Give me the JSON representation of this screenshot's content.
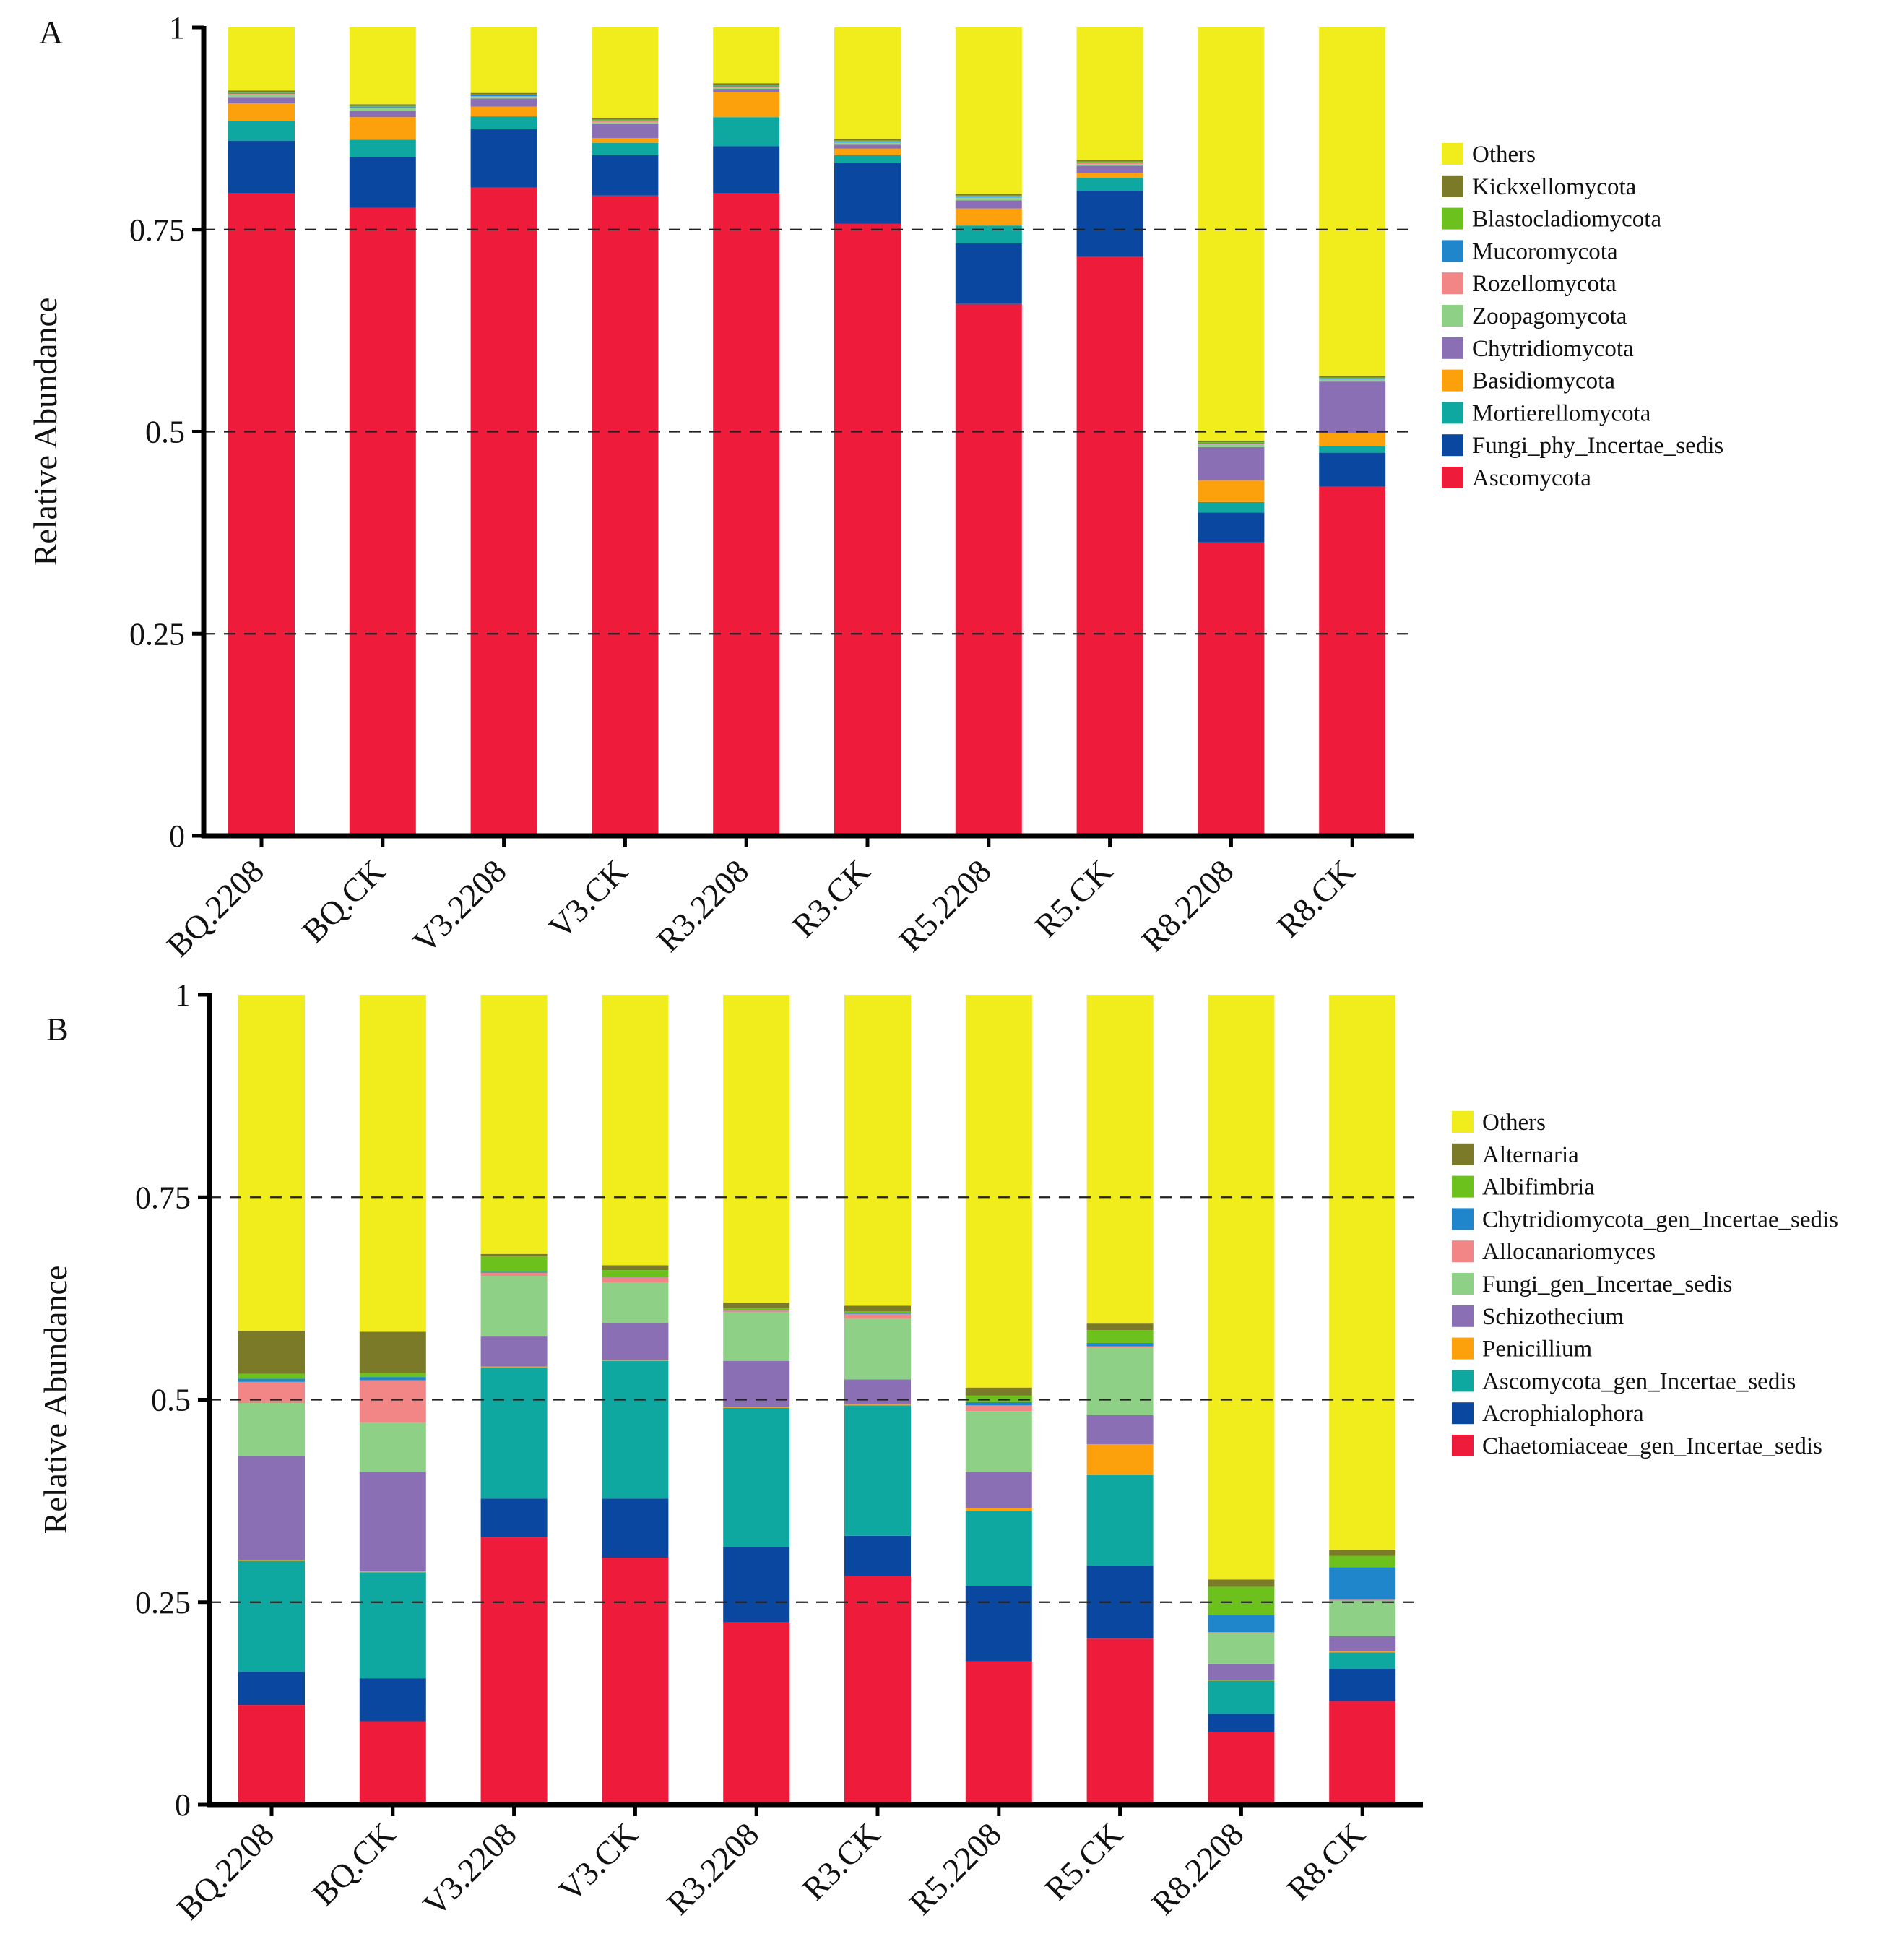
{
  "chart_data": [
    {
      "type": "bar",
      "stacked": true,
      "panel_label": "A",
      "ylabel": "Relative Abundance",
      "ylim": [
        0,
        1
      ],
      "yticks": [
        "0",
        "0.25",
        "0.5",
        "0.75",
        "1"
      ],
      "grid": "dashed horizontal at 0.25, 0.5, 0.75",
      "legend_position": "right",
      "categories": [
        "BQ.2208",
        "BQ.CK",
        "V3.2208",
        "V3.CK",
        "R3.2208",
        "R3.CK",
        "R5.2208",
        "R5.CK",
        "R8.2208",
        "R8.CK"
      ],
      "series": [
        {
          "name": "Ascomycota",
          "color": "#EE1B3B",
          "values": [
            0.795,
            0.777,
            0.802,
            0.792,
            0.795,
            0.757,
            0.658,
            0.716,
            0.363,
            0.432
          ]
        },
        {
          "name": "Fungi_phy_Incertae_sedis",
          "color": "#0A47A0",
          "values": [
            0.065,
            0.063,
            0.072,
            0.05,
            0.058,
            0.075,
            0.075,
            0.082,
            0.037,
            0.042
          ]
        },
        {
          "name": "Mortierellomycota",
          "color": "#0FA8A0",
          "values": [
            0.024,
            0.021,
            0.016,
            0.015,
            0.036,
            0.01,
            0.022,
            0.016,
            0.013,
            0.008
          ]
        },
        {
          "name": "Basidiomycota",
          "color": "#FCA10C",
          "values": [
            0.022,
            0.028,
            0.012,
            0.006,
            0.031,
            0.008,
            0.021,
            0.006,
            0.027,
            0.016
          ]
        },
        {
          "name": "Chytridiomycota",
          "color": "#8B6FB5",
          "values": [
            0.008,
            0.008,
            0.01,
            0.018,
            0.004,
            0.005,
            0.01,
            0.009,
            0.041,
            0.064
          ]
        },
        {
          "name": "Zoopagomycota",
          "color": "#8ED186",
          "values": [
            0.003,
            0.003,
            0.002,
            0.002,
            0.002,
            0.002,
            0.003,
            0.002,
            0.003,
            0.002
          ]
        },
        {
          "name": "Rozellomycota",
          "color": "#F28585",
          "values": [
            0.001,
            0.001,
            0.001,
            0.001,
            0.001,
            0.001,
            0.001,
            0.001,
            0.001,
            0.001
          ]
        },
        {
          "name": "Mucoromycota",
          "color": "#1F86CB",
          "values": [
            0.001,
            0.001,
            0.001,
            0.001,
            0.001,
            0.001,
            0.001,
            0.001,
            0.001,
            0.001
          ]
        },
        {
          "name": "Blastocladiomycota",
          "color": "#6CC11C",
          "values": [
            0.001,
            0.001,
            0.001,
            0.001,
            0.001,
            0.001,
            0.001,
            0.001,
            0.001,
            0.001
          ]
        },
        {
          "name": "Kickxellomycota",
          "color": "#7A7A28",
          "values": [
            0.002,
            0.002,
            0.002,
            0.002,
            0.002,
            0.002,
            0.002,
            0.002,
            0.002,
            0.002
          ]
        },
        {
          "name": "Others",
          "color": "#F1EC1C",
          "values": [
            0.078,
            0.095,
            0.081,
            0.112,
            0.069,
            0.138,
            0.206,
            0.164,
            0.511,
            0.431
          ]
        }
      ]
    },
    {
      "type": "bar",
      "stacked": true,
      "panel_label": "B",
      "ylabel": "Relative Abundance",
      "ylim": [
        0,
        1
      ],
      "yticks": [
        "0",
        "0.25",
        "0.5",
        "0.75",
        "1"
      ],
      "grid": "dashed horizontal at 0.25, 0.5, 0.75",
      "legend_position": "right",
      "categories": [
        "BQ.2208",
        "BQ.CK",
        "V3.2208",
        "V3.CK",
        "R3.2208",
        "R3.CK",
        "R5.2208",
        "R5.CK",
        "R8.2208",
        "R8.CK"
      ],
      "series": [
        {
          "name": "Chaetomiaceae_gen_Incertae_sedis",
          "color": "#EE1B3B",
          "values": [
            0.123,
            0.103,
            0.33,
            0.305,
            0.225,
            0.282,
            0.177,
            0.205,
            0.09,
            0.128
          ]
        },
        {
          "name": "Acrophialophora",
          "color": "#0A47A0",
          "values": [
            0.041,
            0.053,
            0.048,
            0.073,
            0.093,
            0.05,
            0.093,
            0.09,
            0.022,
            0.04
          ]
        },
        {
          "name": "Ascomycota_gen_Incertae_sedis",
          "color": "#0FA8A0",
          "values": [
            0.137,
            0.131,
            0.162,
            0.17,
            0.172,
            0.161,
            0.093,
            0.112,
            0.041,
            0.02
          ]
        },
        {
          "name": "Penicillium",
          "color": "#FCA10C",
          "values": [
            0.001,
            0.001,
            0.001,
            0.001,
            0.001,
            0.001,
            0.003,
            0.038,
            0.001,
            0.001
          ]
        },
        {
          "name": "Schizothecium",
          "color": "#8B6FB5",
          "values": [
            0.128,
            0.123,
            0.037,
            0.046,
            0.057,
            0.031,
            0.045,
            0.036,
            0.02,
            0.019
          ]
        },
        {
          "name": "Fungi_gen_Incertae_sedis",
          "color": "#8ED186",
          "values": [
            0.066,
            0.061,
            0.075,
            0.05,
            0.06,
            0.075,
            0.075,
            0.083,
            0.038,
            0.044
          ]
        },
        {
          "name": "Allocanariomyces",
          "color": "#F28585",
          "values": [
            0.026,
            0.052,
            0.004,
            0.006,
            0.002,
            0.006,
            0.007,
            0.002,
            0.001,
            0.001
          ]
        },
        {
          "name": "Chytridiomycota_gen_Incertae_sedis",
          "color": "#1F86CB",
          "values": [
            0.004,
            0.004,
            0.001,
            0.001,
            0.001,
            0.001,
            0.004,
            0.004,
            0.021,
            0.04
          ]
        },
        {
          "name": "Albifimbria",
          "color": "#6CC11C",
          "values": [
            0.006,
            0.005,
            0.019,
            0.008,
            0.002,
            0.002,
            0.008,
            0.016,
            0.035,
            0.014
          ]
        },
        {
          "name": "Alternaria",
          "color": "#7A7A28",
          "values": [
            0.053,
            0.051,
            0.003,
            0.006,
            0.007,
            0.007,
            0.01,
            0.008,
            0.009,
            0.008
          ]
        },
        {
          "name": "Others",
          "color": "#F1EC1C",
          "values": [
            0.415,
            0.416,
            0.32,
            0.334,
            0.38,
            0.384,
            0.485,
            0.406,
            0.722,
            0.685
          ]
        }
      ]
    }
  ]
}
